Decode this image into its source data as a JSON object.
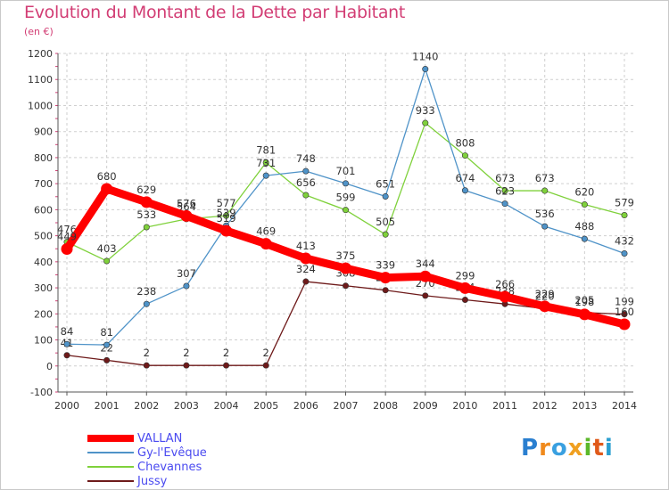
{
  "title": "Evolution du Montant de la Dette par Habitant",
  "subtitle": "(en €)",
  "logo_text": "Proxiti",
  "chart_data": {
    "type": "line",
    "x": [
      "2000",
      "2001",
      "2002",
      "2003",
      "2004",
      "2005",
      "2006",
      "2007",
      "2008",
      "2009",
      "2010",
      "2011",
      "2012",
      "2013",
      "2014"
    ],
    "ylim": [
      -100,
      1200
    ],
    "yticks": [
      -100,
      0,
      100,
      200,
      300,
      400,
      500,
      600,
      700,
      800,
      900,
      1000,
      1100,
      1200
    ],
    "grid": true,
    "legend_position": "bottom-left",
    "series": [
      {
        "name": "Jussy",
        "color": "#6e1a1a",
        "values": [
          41,
          22,
          2,
          2,
          2,
          2,
          324,
          308,
          291,
          270,
          254,
          238,
          220,
          205,
          199
        ]
      },
      {
        "name": "Chevannes",
        "color": "#7fd13b",
        "values": [
          476,
          403,
          533,
          564,
          577,
          781,
          656,
          599,
          505,
          933,
          808,
          673,
          673,
          620,
          579
        ]
      },
      {
        "name": "Gy-l'Evêque",
        "color": "#4f93c8",
        "values": [
          84,
          81,
          238,
          307,
          539,
          731,
          748,
          701,
          651,
          1140,
          674,
          623,
          536,
          488,
          432
        ]
      },
      {
        "name": "VALLAN",
        "color": "#ff0000",
        "values": [
          449,
          680,
          629,
          576,
          519,
          469,
          413,
          375,
          339,
          344,
          299,
          266,
          229,
          198,
          160
        ]
      }
    ]
  },
  "legend": [
    {
      "name": "VALLAN",
      "color": "#ff0000"
    },
    {
      "name": "Gy-l'Evêque",
      "color": "#4f93c8"
    },
    {
      "name": "Chevannes",
      "color": "#7fd13b"
    },
    {
      "name": "Jussy",
      "color": "#6e1a1a"
    }
  ]
}
